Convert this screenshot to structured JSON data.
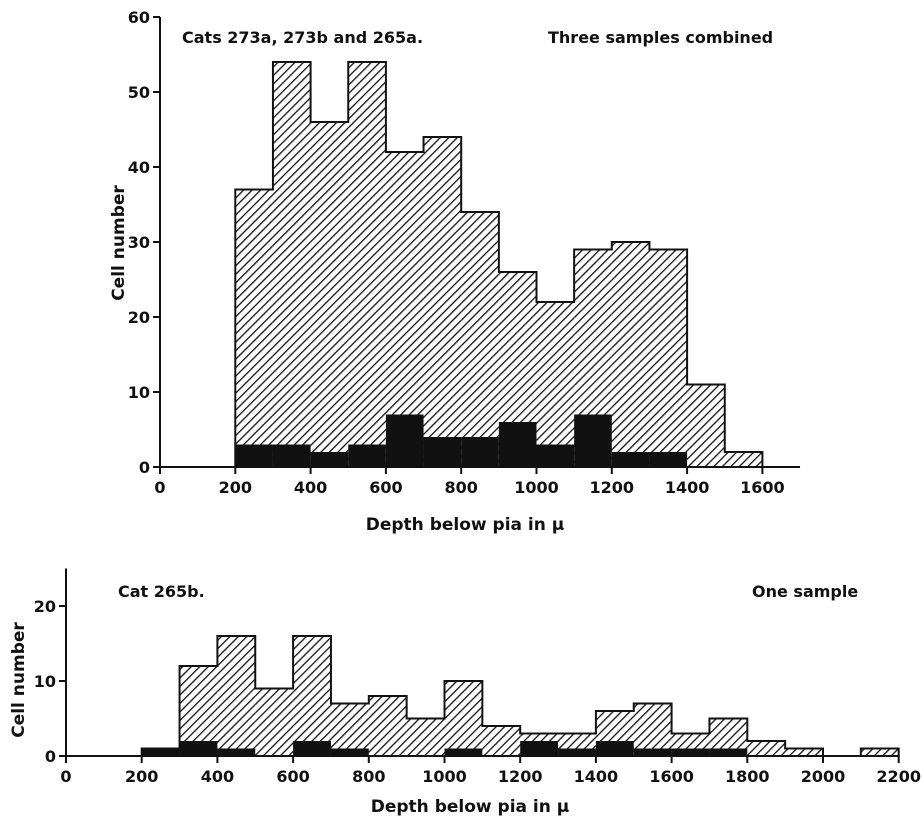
{
  "chart_data": [
    {
      "type": "bar",
      "subtype": "histogram",
      "title_left": "Cats 273a, 273b and 265a.",
      "title_right": "Three samples combined",
      "xlabel": "Depth below pia in μ",
      "ylabel": "Cell number",
      "xlim": [
        0,
        1700
      ],
      "ylim": [
        0,
        60
      ],
      "xticks": [
        0,
        200,
        400,
        600,
        800,
        1000,
        1200,
        1400,
        1600
      ],
      "yticks": [
        0,
        10,
        20,
        30,
        40,
        50,
        60
      ],
      "bin_width": 100,
      "series": [
        {
          "fill": "hatched",
          "bin_starts": [
            200,
            300,
            400,
            500,
            600,
            700,
            800,
            900,
            1000,
            1100,
            1200,
            1300,
            1400,
            1500
          ],
          "values": [
            37,
            54,
            46,
            54,
            42,
            44,
            34,
            26,
            22,
            29,
            30,
            29,
            11,
            2
          ]
        },
        {
          "fill": "solid black",
          "bin_starts": [
            200,
            300,
            400,
            500,
            600,
            700,
            800,
            900,
            1000,
            1100,
            1200,
            1300
          ],
          "values": [
            3,
            3,
            2,
            3,
            7,
            4,
            4,
            6,
            3,
            7,
            2,
            2
          ]
        }
      ]
    },
    {
      "type": "bar",
      "subtype": "histogram",
      "title_left": "Cat 265b.",
      "title_right": "One sample",
      "xlabel": "Depth below pia in μ",
      "ylabel": "Cell number",
      "xlim": [
        0,
        2200
      ],
      "ylim": [
        0,
        25
      ],
      "xticks": [
        0,
        200,
        400,
        600,
        800,
        1000,
        1200,
        1400,
        1600,
        1800,
        2000,
        2200
      ],
      "yticks": [
        0,
        10,
        20
      ],
      "bin_width": 100,
      "series": [
        {
          "fill": "hatched",
          "bin_starts": [
            200,
            300,
            400,
            500,
            600,
            700,
            800,
            900,
            1000,
            1100,
            1200,
            1300,
            1400,
            1500,
            1600,
            1700,
            1800,
            1900,
            2000,
            2100
          ],
          "values": [
            1,
            12,
            16,
            9,
            16,
            7,
            8,
            5,
            10,
            4,
            3,
            3,
            6,
            7,
            3,
            5,
            2,
            1,
            0,
            1
          ]
        },
        {
          "fill": "solid black",
          "bin_starts": [
            200,
            300,
            400,
            500,
            600,
            700,
            800,
            900,
            1000,
            1100,
            1200,
            1300,
            1400,
            1500,
            1600,
            1700
          ],
          "values": [
            1,
            2,
            1,
            0,
            2,
            1,
            0,
            0,
            1,
            0,
            2,
            1,
            2,
            1,
            1,
            1
          ]
        }
      ]
    }
  ]
}
